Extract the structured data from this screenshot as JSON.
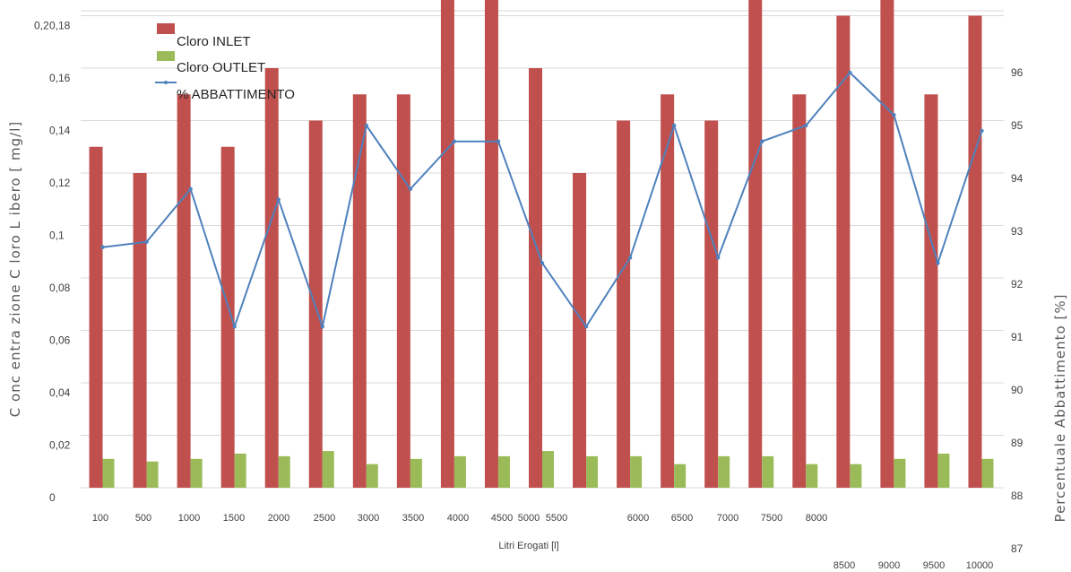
{
  "chart_data": {
    "type": "bar",
    "xlabel": "Litri Erogati [l]",
    "ylabel": "C onc entra zione C loro L ibero [ mg/l]",
    "y2label": "Percentuale Abbattimento [%]",
    "ylim": [
      0,
      0.2
    ],
    "y2lim": [
      87,
      96
    ],
    "y_ticks": [
      "0",
      "0,02",
      "0,04",
      "0,06",
      "0,08",
      "0,1",
      "0,12",
      "0,14",
      "0,16",
      "0,18"
    ],
    "y_top_tick": "0,2",
    "y2_ticks": [
      "87",
      "88",
      "89",
      "90",
      "91",
      "92",
      "93",
      "94",
      "95",
      "96"
    ],
    "categories": [
      "100",
      "500",
      "1000",
      "1500",
      "2000",
      "2500",
      "3000",
      "3500",
      "4000",
      "4500",
      "5000",
      "5500",
      "6000",
      "6500",
      "7000",
      "7500",
      "8000",
      "8500",
      "9000",
      "9500",
      "10000"
    ],
    "grid": true,
    "legend_placement": "top-left",
    "series": [
      {
        "name": "Cloro INLET",
        "kind": "bar",
        "color": "#c0504d",
        "values": [
          0.13,
          0.12,
          0.15,
          0.13,
          0.16,
          0.14,
          0.15,
          0.15,
          0.19,
          0.19,
          0.16,
          0.12,
          0.14,
          0.15,
          0.14,
          0.19,
          0.15,
          0.18,
          0.19,
          0.15,
          0.18
        ]
      },
      {
        "name": "Cloro OUTLET",
        "kind": "bar",
        "color": "#9bbb59",
        "values": [
          0.011,
          0.01,
          0.011,
          0.013,
          0.012,
          0.014,
          0.009,
          0.011,
          0.012,
          0.012,
          0.014,
          0.012,
          0.012,
          0.009,
          0.012,
          0.012,
          0.009,
          0.009,
          0.011,
          0.013,
          0.011
        ]
      },
      {
        "name": "% ABBATTIMENTO",
        "kind": "line",
        "axis": "right",
        "color": "#4f81bd",
        "values": [
          92.7,
          92.8,
          93.8,
          91.2,
          93.6,
          91.2,
          95.0,
          93.8,
          94.7,
          94.7,
          92.4,
          91.2,
          92.5,
          95.0,
          92.5,
          94.7,
          95.0,
          96.0,
          95.2,
          92.4,
          94.9
        ]
      }
    ]
  }
}
